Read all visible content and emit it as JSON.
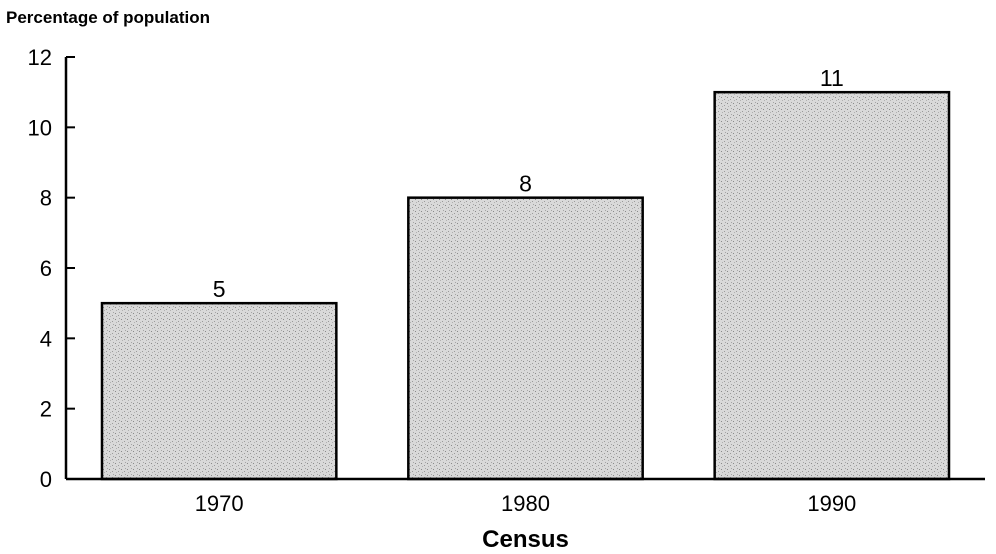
{
  "chart_data": {
    "type": "bar",
    "ylabel": "Percentage of population",
    "xlabel": "Census",
    "categories": [
      "1970",
      "1980",
      "1990"
    ],
    "values": [
      5,
      8,
      11
    ],
    "data_labels": [
      "5",
      "8",
      "11"
    ],
    "ylim": [
      0,
      12
    ],
    "yticks": [
      0,
      2,
      4,
      6,
      8,
      10,
      12
    ],
    "grid": false,
    "legend": "none",
    "bar_color": "#cfcfcf",
    "bar_outline": "#000000"
  }
}
